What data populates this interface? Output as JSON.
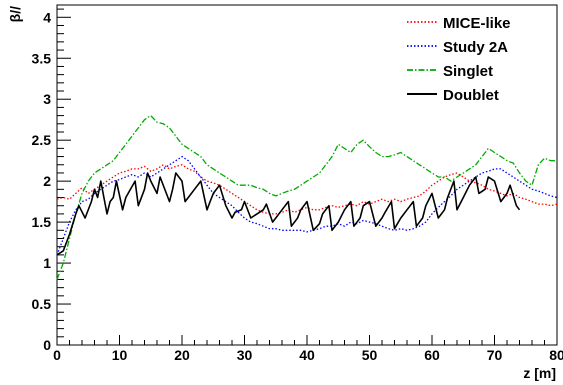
{
  "chart_data": {
    "type": "line",
    "title": "",
    "xlabel": "z [m]",
    "ylabel": "β//",
    "xlim": [
      0,
      80
    ],
    "ylim": [
      0,
      4.15
    ],
    "x_ticks": [
      0,
      10,
      20,
      30,
      40,
      50,
      60,
      70,
      80
    ],
    "y_ticks": [
      0,
      0.5,
      1,
      1.5,
      2,
      2.5,
      3,
      3.5,
      4
    ],
    "x_tick_labels": [
      "0",
      "10",
      "20",
      "30",
      "40",
      "50",
      "60",
      "70",
      "80"
    ],
    "y_tick_labels": [
      "0",
      "0.5",
      "1",
      "1.5",
      "2",
      "2.5",
      "3",
      "3.5",
      "4"
    ],
    "grid": false,
    "legend_position": "top-right",
    "series": [
      {
        "name": "MICE-like",
        "color": "#ff0000",
        "style": "dotted",
        "x": [
          0,
          1,
          2,
          3,
          4,
          5,
          6,
          7,
          8,
          9,
          10,
          11,
          12,
          13,
          14,
          15,
          16,
          17,
          18,
          19,
          20,
          21,
          22,
          23,
          24,
          25,
          26,
          27,
          28,
          29,
          30,
          31,
          32,
          33,
          34,
          35,
          36,
          37,
          38,
          39,
          40,
          41,
          42,
          43,
          44,
          45,
          46,
          47,
          48,
          49,
          50,
          51,
          52,
          53,
          54,
          55,
          56,
          57,
          58,
          59,
          60,
          61,
          62,
          63,
          64,
          65,
          66,
          67,
          68,
          69,
          70,
          71,
          72,
          73,
          74,
          75,
          76,
          77,
          78,
          79,
          80
        ],
        "values": [
          1.78,
          1.8,
          1.78,
          1.85,
          1.92,
          1.85,
          1.9,
          1.95,
          2.0,
          2.05,
          2.1,
          2.12,
          2.15,
          2.15,
          2.18,
          2.12,
          2.15,
          2.2,
          2.15,
          2.18,
          2.2,
          2.15,
          2.12,
          2.05,
          2.0,
          1.98,
          1.95,
          1.9,
          1.85,
          1.8,
          1.75,
          1.7,
          1.65,
          1.62,
          1.6,
          1.6,
          1.62,
          1.65,
          1.62,
          1.65,
          1.68,
          1.65,
          1.65,
          1.68,
          1.7,
          1.68,
          1.7,
          1.72,
          1.7,
          1.75,
          1.72,
          1.75,
          1.78,
          1.75,
          1.78,
          1.75,
          1.78,
          1.8,
          1.82,
          1.88,
          1.95,
          2.0,
          2.05,
          2.08,
          2.1,
          2.05,
          2.0,
          1.98,
          1.95,
          1.9,
          1.88,
          1.85,
          1.82,
          1.85,
          1.8,
          1.78,
          1.75,
          1.72,
          1.72,
          1.7,
          1.72
        ]
      },
      {
        "name": "Study 2A",
        "color": "#0000ff",
        "style": "dotted",
        "x": [
          0,
          1,
          2,
          3,
          4,
          5,
          6,
          7,
          8,
          9,
          10,
          11,
          12,
          13,
          14,
          15,
          16,
          17,
          18,
          19,
          20,
          21,
          22,
          23,
          24,
          25,
          26,
          27,
          28,
          29,
          30,
          31,
          32,
          33,
          34,
          35,
          36,
          37,
          38,
          39,
          40,
          41,
          42,
          43,
          44,
          45,
          46,
          47,
          48,
          49,
          50,
          51,
          52,
          53,
          54,
          55,
          56,
          57,
          58,
          59,
          60,
          61,
          62,
          63,
          64,
          65,
          66,
          67,
          68,
          69,
          70,
          71,
          72,
          73,
          74,
          75,
          76,
          77,
          78,
          79,
          80
        ],
        "values": [
          1.1,
          1.3,
          1.5,
          1.65,
          1.75,
          1.78,
          1.85,
          1.9,
          1.95,
          2.0,
          2.02,
          2.05,
          2.08,
          2.05,
          2.1,
          2.05,
          2.1,
          2.15,
          2.2,
          2.25,
          2.3,
          2.25,
          2.15,
          2.05,
          1.95,
          1.85,
          1.8,
          1.75,
          1.7,
          1.62,
          1.55,
          1.5,
          1.48,
          1.45,
          1.42,
          1.42,
          1.4,
          1.4,
          1.4,
          1.4,
          1.38,
          1.4,
          1.42,
          1.45,
          1.45,
          1.48,
          1.45,
          1.5,
          1.48,
          1.52,
          1.5,
          1.48,
          1.45,
          1.42,
          1.4,
          1.42,
          1.4,
          1.42,
          1.45,
          1.5,
          1.6,
          1.68,
          1.75,
          1.82,
          1.9,
          1.95,
          2.0,
          2.05,
          2.1,
          2.12,
          2.15,
          2.15,
          2.1,
          2.05,
          2.0,
          1.95,
          1.9,
          1.88,
          1.85,
          1.82,
          1.8
        ]
      },
      {
        "name": "Singlet",
        "color": "#00aa00",
        "style": "dashdot",
        "x": [
          0,
          1,
          2,
          3,
          4,
          5,
          6,
          7,
          8,
          9,
          10,
          11,
          12,
          13,
          14,
          15,
          16,
          17,
          18,
          19,
          20,
          21,
          22,
          23,
          24,
          25,
          26,
          27,
          28,
          29,
          30,
          31,
          32,
          33,
          34,
          35,
          36,
          37,
          38,
          39,
          40,
          41,
          42,
          43,
          44,
          45,
          46,
          47,
          48,
          49,
          50,
          51,
          52,
          53,
          54,
          55,
          56,
          57,
          58,
          59,
          60,
          61,
          62,
          63,
          64,
          65,
          66,
          67,
          68,
          69,
          70,
          71,
          72,
          73,
          74,
          75,
          76,
          77,
          78,
          79,
          80
        ],
        "values": [
          0.8,
          1.0,
          1.3,
          1.6,
          1.85,
          2.0,
          2.1,
          2.15,
          2.2,
          2.25,
          2.35,
          2.45,
          2.55,
          2.65,
          2.75,
          2.8,
          2.72,
          2.7,
          2.65,
          2.55,
          2.45,
          2.4,
          2.35,
          2.3,
          2.2,
          2.15,
          2.1,
          2.05,
          2.0,
          1.95,
          1.95,
          1.95,
          1.92,
          1.9,
          1.85,
          1.82,
          1.85,
          1.88,
          1.9,
          1.95,
          2.0,
          2.05,
          2.1,
          2.2,
          2.3,
          2.45,
          2.4,
          2.35,
          2.45,
          2.5,
          2.42,
          2.35,
          2.3,
          2.3,
          2.32,
          2.35,
          2.3,
          2.25,
          2.2,
          2.15,
          2.1,
          2.05,
          2.05,
          2.0,
          2.05,
          2.1,
          2.15,
          2.2,
          2.3,
          2.4,
          2.35,
          2.3,
          2.25,
          2.22,
          2.1,
          2.0,
          1.95,
          2.2,
          2.28,
          2.25,
          2.25
        ]
      },
      {
        "name": "Doublet",
        "color": "#000000",
        "style": "solid",
        "x": [
          0,
          1,
          2,
          3,
          3.5,
          4.5,
          5.5,
          6,
          6.5,
          7,
          8,
          8.5,
          9,
          9.5,
          10.5,
          11,
          12.5,
          13,
          14,
          14.5,
          15,
          16,
          16.5,
          18,
          18.5,
          19,
          20,
          20.5,
          21,
          22,
          23,
          24,
          24.5,
          25,
          26,
          27,
          28,
          28.5,
          29.5,
          30,
          31,
          32,
          33,
          33.5,
          34.5,
          35,
          36,
          37,
          37.5,
          38.5,
          39,
          40,
          41,
          42,
          42.5,
          43.5,
          44,
          45,
          46,
          47,
          47.5,
          48.5,
          49,
          50,
          51,
          52,
          52.5,
          53.5,
          54,
          55,
          56,
          57,
          57.5,
          58.5,
          59,
          60,
          61,
          62,
          62.5,
          63.5,
          64,
          65,
          66,
          67,
          67.5,
          68.5,
          69,
          70,
          71,
          72,
          72.5,
          73.5,
          74
        ],
        "values": [
          1.1,
          1.15,
          1.35,
          1.6,
          1.7,
          1.55,
          1.75,
          1.9,
          1.8,
          2.0,
          1.6,
          1.75,
          1.8,
          2.0,
          1.65,
          1.8,
          2.0,
          1.7,
          1.9,
          2.1,
          2.0,
          1.85,
          2.05,
          1.75,
          1.9,
          2.1,
          2.0,
          1.75,
          1.8,
          1.9,
          2.0,
          1.65,
          1.75,
          1.85,
          1.95,
          1.7,
          1.55,
          1.62,
          1.65,
          1.75,
          1.55,
          1.6,
          1.65,
          1.72,
          1.5,
          1.55,
          1.65,
          1.75,
          1.45,
          1.55,
          1.65,
          1.75,
          1.4,
          1.48,
          1.6,
          1.7,
          1.4,
          1.5,
          1.65,
          1.75,
          1.45,
          1.55,
          1.7,
          1.75,
          1.45,
          1.55,
          1.62,
          1.75,
          1.42,
          1.55,
          1.65,
          1.75,
          1.45,
          1.55,
          1.7,
          1.85,
          1.55,
          1.65,
          1.8,
          2.0,
          1.65,
          1.8,
          1.95,
          2.05,
          1.85,
          1.9,
          2.05,
          2.0,
          1.75,
          1.85,
          1.95,
          1.7,
          1.65
        ]
      }
    ]
  }
}
